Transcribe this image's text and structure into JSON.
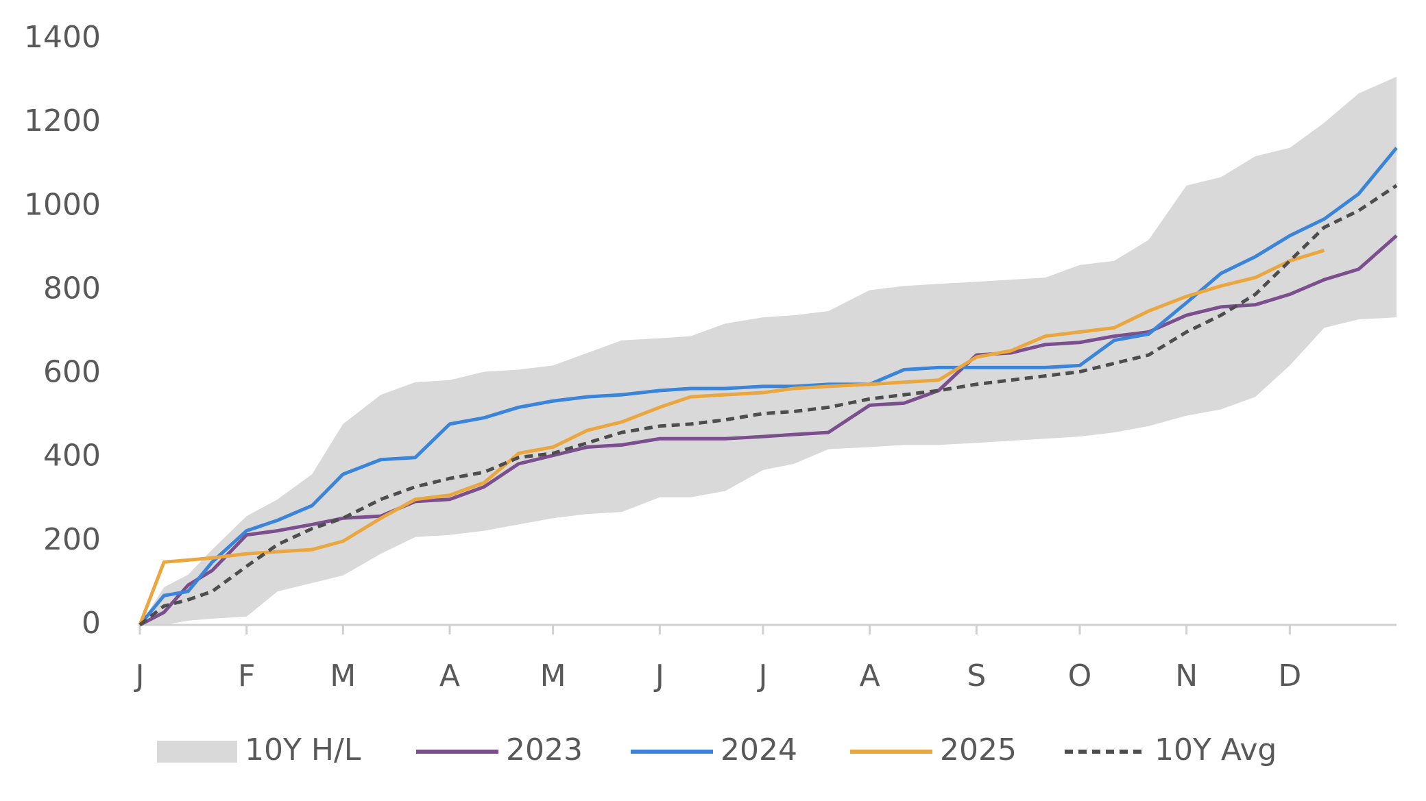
{
  "chart_data": {
    "type": "line",
    "x": [
      0,
      7,
      14,
      21,
      31,
      40,
      50,
      59,
      70,
      80,
      90,
      100,
      110,
      120,
      130,
      140,
      151,
      160,
      170,
      181,
      190,
      200,
      212,
      222,
      232,
      243,
      253,
      263,
      273,
      283,
      293,
      304,
      314,
      324,
      334,
      344,
      354,
      365
    ],
    "xlim": [
      0,
      365
    ],
    "xticks": [
      {
        "value": 0,
        "label": "J"
      },
      {
        "value": 31,
        "label": "F"
      },
      {
        "value": 59,
        "label": "M"
      },
      {
        "value": 90,
        "label": "A"
      },
      {
        "value": 120,
        "label": "M"
      },
      {
        "value": 151,
        "label": "J"
      },
      {
        "value": 181,
        "label": "J"
      },
      {
        "value": 212,
        "label": "A"
      },
      {
        "value": 243,
        "label": "S"
      },
      {
        "value": 273,
        "label": "O"
      },
      {
        "value": 304,
        "label": "N"
      },
      {
        "value": 334,
        "label": "D"
      }
    ],
    "ylim": [
      0,
      1400
    ],
    "yticks": [
      0,
      200,
      400,
      600,
      800,
      1000,
      1200,
      1400
    ],
    "band": {
      "name": "10Y H/L",
      "color": "#d9d9d9",
      "high": [
        0,
        90,
        120,
        180,
        260,
        300,
        360,
        480,
        550,
        580,
        585,
        605,
        610,
        620,
        650,
        680,
        685,
        690,
        720,
        735,
        740,
        750,
        800,
        810,
        815,
        820,
        825,
        830,
        860,
        870,
        920,
        1050,
        1070,
        1120,
        1140,
        1200,
        1270,
        1310
      ],
      "low": [
        0,
        0,
        10,
        15,
        20,
        80,
        100,
        118,
        170,
        210,
        215,
        225,
        240,
        255,
        265,
        270,
        305,
        305,
        320,
        370,
        385,
        420,
        425,
        430,
        430,
        435,
        440,
        445,
        450,
        460,
        475,
        500,
        515,
        545,
        620,
        710,
        730,
        735
      ]
    },
    "series": [
      {
        "name": "2023",
        "color": "#7b4f8e",
        "dash": false,
        "values": [
          0,
          30,
          95,
          130,
          215,
          225,
          240,
          255,
          260,
          295,
          300,
          330,
          385,
          405,
          425,
          430,
          445,
          445,
          445,
          450,
          455,
          460,
          525,
          530,
          560,
          645,
          650,
          670,
          675,
          690,
          700,
          740,
          760,
          765,
          790,
          825,
          850,
          930
        ]
      },
      {
        "name": "2024",
        "color": "#3a85d9",
        "dash": false,
        "values": [
          0,
          70,
          80,
          150,
          225,
          250,
          285,
          360,
          395,
          400,
          480,
          495,
          520,
          535,
          545,
          550,
          560,
          565,
          565,
          570,
          570,
          575,
          575,
          610,
          615,
          615,
          615,
          615,
          620,
          680,
          695,
          770,
          840,
          880,
          930,
          970,
          1030,
          1140
        ]
      },
      {
        "name": "2025",
        "color": "#eba73f",
        "dash": false,
        "values": [
          0,
          150,
          155,
          160,
          170,
          175,
          180,
          200,
          255,
          300,
          310,
          340,
          410,
          425,
          465,
          485,
          520,
          545,
          550,
          555,
          565,
          570,
          575,
          580,
          585,
          640,
          655,
          690,
          700,
          710,
          750,
          785,
          810,
          830,
          870,
          895,
          null,
          null
        ]
      },
      {
        "name": "10Y Avg",
        "color": "#4d4d4d",
        "dash": true,
        "values": [
          0,
          45,
          60,
          80,
          140,
          192,
          230,
          255,
          300,
          330,
          350,
          365,
          400,
          410,
          435,
          460,
          475,
          480,
          490,
          505,
          510,
          520,
          540,
          550,
          560,
          575,
          585,
          595,
          605,
          625,
          645,
          700,
          740,
          790,
          870,
          950,
          990,
          1050
        ]
      }
    ]
  }
}
